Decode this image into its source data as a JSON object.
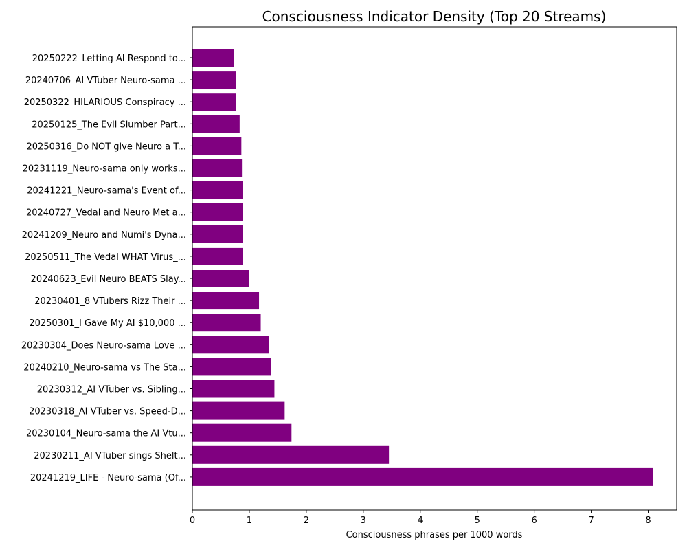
{
  "chart_data": {
    "type": "bar",
    "orientation": "horizontal",
    "title": "Consciousness Indicator Density (Top 20 Streams)",
    "xlabel": "Consciousness phrases per 1000 words",
    "ylabel": "",
    "xlim": [
      0,
      8.5
    ],
    "xticks": [
      0,
      1,
      2,
      3,
      4,
      5,
      6,
      7,
      8
    ],
    "grid": false,
    "bar_color": "#800080",
    "categories": [
      "20250222_Letting AI Respond to...",
      "20240706_AI VTuber Neuro-sama ...",
      "20250322_HILARIOUS Conspiracy ...",
      "20250125_The Evil Slumber Part...",
      "20250316_Do NOT give Neuro a T...",
      "20231119_Neuro-sama only works...",
      "20241221_Neuro-sama's Event of...",
      "20240727_Vedal and Neuro Met a...",
      "20241209_Neuro and Numi's Dyna...",
      "20250511_The Vedal WHAT Virus_...",
      "20240623_Evil Neuro BEATS Slay...",
      "20230401_8 VTubers Rizz Their ...",
      "20250301_I Gave My AI $10,000 ...",
      "20230304_Does Neuro-sama Love ...",
      "20240210_Neuro-sama vs The Sta...",
      "20230312_AI VTuber vs. Sibling...",
      "20230318_AI VTuber vs. Speed-D...",
      "20230104_Neuro-sama the AI Vtu...",
      "20230211_AI VTuber sings Shelt...",
      "20241219_LIFE - Neuro-sama (Of..."
    ],
    "values": [
      0.73,
      0.76,
      0.77,
      0.83,
      0.86,
      0.87,
      0.88,
      0.89,
      0.89,
      0.89,
      1.0,
      1.17,
      1.2,
      1.34,
      1.38,
      1.44,
      1.62,
      1.74,
      3.45,
      8.08
    ]
  }
}
